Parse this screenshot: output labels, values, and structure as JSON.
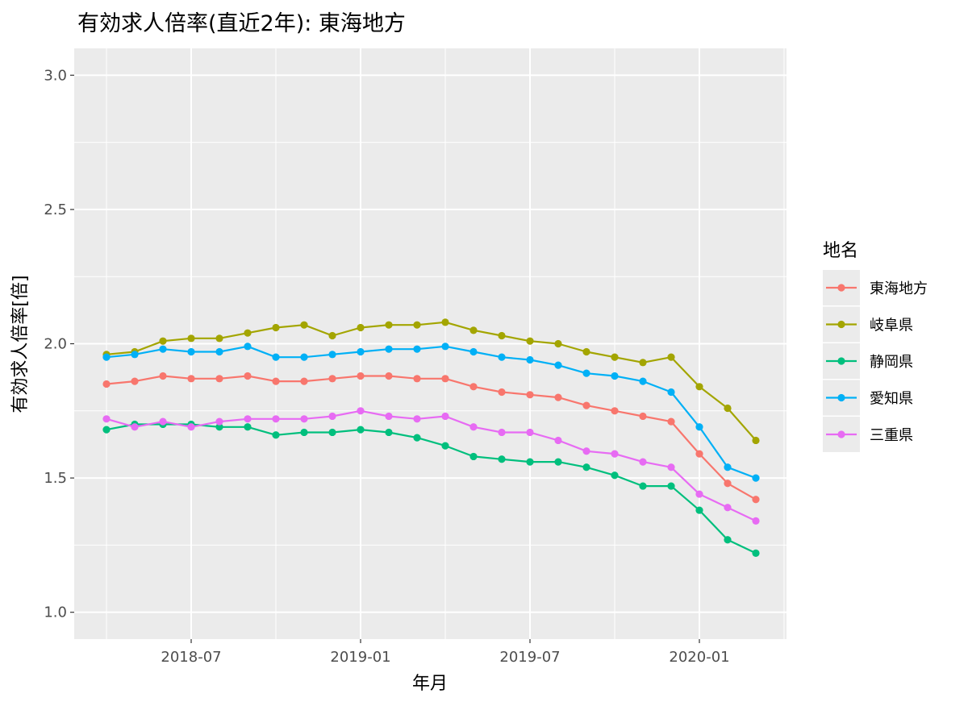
{
  "chart_data": {
    "type": "line",
    "title": "有効求人倍率(直近2年): 東海地方",
    "xlabel": "年月",
    "ylabel": "有効求人倍率[倍]",
    "ylim": [
      0.9,
      3.1
    ],
    "y_ticks": [
      "1.0",
      "1.5",
      "2.0",
      "2.5",
      "3.0"
    ],
    "x_ticks": [
      "2018-07",
      "2019-01",
      "2019-07",
      "2020-01"
    ],
    "x": [
      "2018-04",
      "2018-05",
      "2018-06",
      "2018-07",
      "2018-08",
      "2018-09",
      "2018-10",
      "2018-11",
      "2018-12",
      "2019-01",
      "2019-02",
      "2019-03",
      "2019-04",
      "2019-05",
      "2019-06",
      "2019-07",
      "2019-08",
      "2019-09",
      "2019-10",
      "2019-11",
      "2019-12",
      "2020-01",
      "2020-02",
      "2020-03"
    ],
    "legend_title": "地名",
    "legend_position": "right",
    "series": [
      {
        "name": "東海地方",
        "color": "#F8766D",
        "values": [
          1.85,
          1.86,
          1.88,
          1.87,
          1.87,
          1.88,
          1.86,
          1.86,
          1.87,
          1.88,
          1.88,
          1.87,
          1.87,
          1.84,
          1.82,
          1.81,
          1.8,
          1.77,
          1.75,
          1.73,
          1.71,
          1.59,
          1.48,
          1.42
        ]
      },
      {
        "name": "岐阜県",
        "color": "#A3A500",
        "values": [
          1.96,
          1.97,
          2.01,
          2.02,
          2.02,
          2.04,
          2.06,
          2.07,
          2.03,
          2.06,
          2.07,
          2.07,
          2.08,
          2.05,
          2.03,
          2.01,
          2.0,
          1.97,
          1.95,
          1.93,
          1.95,
          1.84,
          1.76,
          1.64
        ]
      },
      {
        "name": "静岡県",
        "color": "#00BF7D",
        "values": [
          1.68,
          1.7,
          1.7,
          1.7,
          1.69,
          1.69,
          1.66,
          1.67,
          1.67,
          1.68,
          1.67,
          1.65,
          1.62,
          1.58,
          1.57,
          1.56,
          1.56,
          1.54,
          1.51,
          1.47,
          1.47,
          1.38,
          1.27,
          1.22
        ]
      },
      {
        "name": "愛知県",
        "color": "#00B0F6",
        "values": [
          1.95,
          1.96,
          1.98,
          1.97,
          1.97,
          1.99,
          1.95,
          1.95,
          1.96,
          1.97,
          1.98,
          1.98,
          1.99,
          1.97,
          1.95,
          1.94,
          1.92,
          1.89,
          1.88,
          1.86,
          1.82,
          1.69,
          1.54,
          1.5
        ]
      },
      {
        "name": "三重県",
        "color": "#E76BF3",
        "values": [
          1.72,
          1.69,
          1.71,
          1.69,
          1.71,
          1.72,
          1.72,
          1.72,
          1.73,
          1.75,
          1.73,
          1.72,
          1.73,
          1.69,
          1.67,
          1.67,
          1.64,
          1.6,
          1.59,
          1.56,
          1.54,
          1.44,
          1.39,
          1.34
        ]
      }
    ]
  }
}
